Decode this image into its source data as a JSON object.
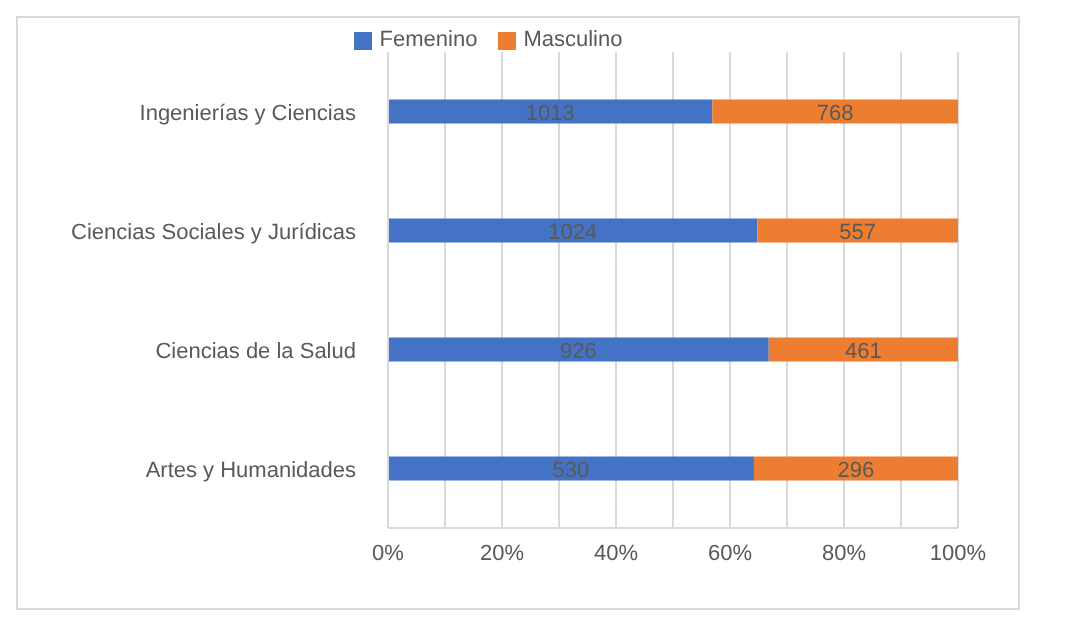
{
  "chart_data": {
    "type": "bar",
    "orientation": "horizontal",
    "stacked": true,
    "categories": [
      "Ingenierías y Ciencias",
      "Ciencias Sociales y Jurídicas",
      "Ciencias de la Salud",
      "Artes y Humanidades"
    ],
    "series": [
      {
        "name": "Femenino",
        "color": "#4472c4",
        "values": [
          56.9,
          64.8,
          66.8,
          64.2
        ]
      },
      {
        "name": "Masculino",
        "color": "#ed7d31",
        "values": [
          43.1,
          35.2,
          33.2,
          35.8
        ]
      }
    ],
    "annotations": [
      {
        "text": "1013",
        "x": 28.45,
        "y": "Ingenierías y Ciencias"
      },
      {
        "text": "768",
        "x": 78.45,
        "y": "Ingenierías y Ciencias"
      },
      {
        "text": "1024",
        "x": 32.4,
        "y": "Ciencias Sociales y Jurídicas"
      },
      {
        "text": "557",
        "x": 82.4,
        "y": "Ciencias Sociales y Jurídicas"
      },
      {
        "text": "926",
        "x": 33.4,
        "y": "Ciencias de la Salud"
      },
      {
        "text": "461",
        "x": 83.4,
        "y": "Ciencias de la Salud"
      },
      {
        "text": "530",
        "x": 32.1,
        "y": "Artes y Humanidades"
      },
      {
        "text": "296",
        "x": 82.1,
        "y": "Artes y Humanidades"
      }
    ],
    "xlim": [
      0,
      100
    ],
    "xticks": [
      {
        "value": 0,
        "label": "0%"
      },
      {
        "value": 10,
        "label": null
      },
      {
        "value": 20,
        "label": "20%"
      },
      {
        "value": 30,
        "label": null
      },
      {
        "value": 40,
        "label": "40%"
      },
      {
        "value": 50,
        "label": null
      },
      {
        "value": 60,
        "label": "60%"
      },
      {
        "value": 70,
        "label": null
      },
      {
        "value": 80,
        "label": "80%"
      },
      {
        "value": 90,
        "label": null
      },
      {
        "value": 100,
        "label": "100%"
      }
    ],
    "grid": "x",
    "legend": "top"
  }
}
